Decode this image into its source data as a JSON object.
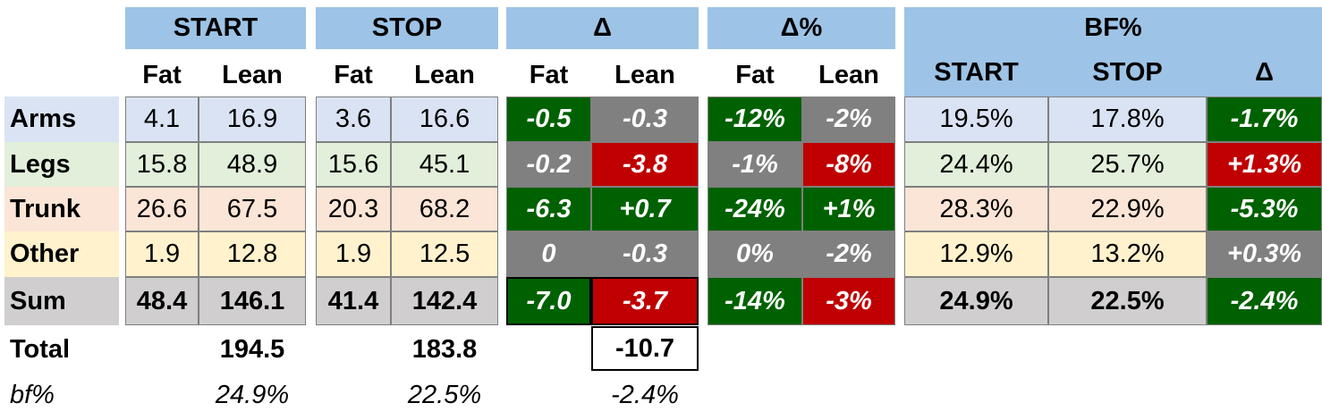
{
  "headers": {
    "start": "START",
    "stop": "STOP",
    "delta": "Δ",
    "delta_pct": "Δ%",
    "bf_pct": "BF%",
    "fat": "Fat",
    "lean": "Lean",
    "bf_start": "START",
    "bf_stop": "STOP",
    "bf_delta": "Δ"
  },
  "rows": [
    {
      "label": "Arms",
      "start_fat": "4.1",
      "start_lean": "16.9",
      "stop_fat": "3.6",
      "stop_lean": "16.6",
      "d_fat": "-0.5",
      "d_lean": "-0.3",
      "dp_fat": "-12%",
      "dp_lean": "-2%",
      "bf_start": "19.5%",
      "bf_stop": "17.8%",
      "bf_delta": "-1.7%"
    },
    {
      "label": "Legs",
      "start_fat": "15.8",
      "start_lean": "48.9",
      "stop_fat": "15.6",
      "stop_lean": "45.1",
      "d_fat": "-0.2",
      "d_lean": "-3.8",
      "dp_fat": "-1%",
      "dp_lean": "-8%",
      "bf_start": "24.4%",
      "bf_stop": "25.7%",
      "bf_delta": "+1.3%"
    },
    {
      "label": "Trunk",
      "start_fat": "26.6",
      "start_lean": "67.5",
      "stop_fat": "20.3",
      "stop_lean": "68.2",
      "d_fat": "-6.3",
      "d_lean": "+0.7",
      "dp_fat": "-24%",
      "dp_lean": "+1%",
      "bf_start": "28.3%",
      "bf_stop": "22.9%",
      "bf_delta": "-5.3%"
    },
    {
      "label": "Other",
      "start_fat": "1.9",
      "start_lean": "12.8",
      "stop_fat": "1.9",
      "stop_lean": "12.5",
      "d_fat": "0",
      "d_lean": "-0.3",
      "dp_fat": "0%",
      "dp_lean": "-2%",
      "bf_start": "12.9%",
      "bf_stop": "13.2%",
      "bf_delta": "+0.3%"
    },
    {
      "label": "Sum",
      "start_fat": "48.4",
      "start_lean": "146.1",
      "stop_fat": "41.4",
      "stop_lean": "142.4",
      "d_fat": "-7.0",
      "d_lean": "-3.7",
      "dp_fat": "-14%",
      "dp_lean": "-3%",
      "bf_start": "24.9%",
      "bf_stop": "22.5%",
      "bf_delta": "-2.4%"
    }
  ],
  "total": {
    "label": "Total",
    "start": "194.5",
    "stop": "183.8",
    "delta": "-10.7"
  },
  "bf": {
    "label": "bf%",
    "start": "24.9%",
    "stop": "22.5%",
    "delta": "-2.4%"
  },
  "colors": {
    "header_blue": "#9dc3e6",
    "row_arms": "#dae3f3",
    "row_legs": "#e2efda",
    "row_trunk": "#fbe5d6",
    "row_other": "#fff2cc",
    "row_sum": "#d0cece",
    "loss_green": "#006100",
    "gain_red": "#c00000",
    "neutral_gray": "#808080"
  }
}
